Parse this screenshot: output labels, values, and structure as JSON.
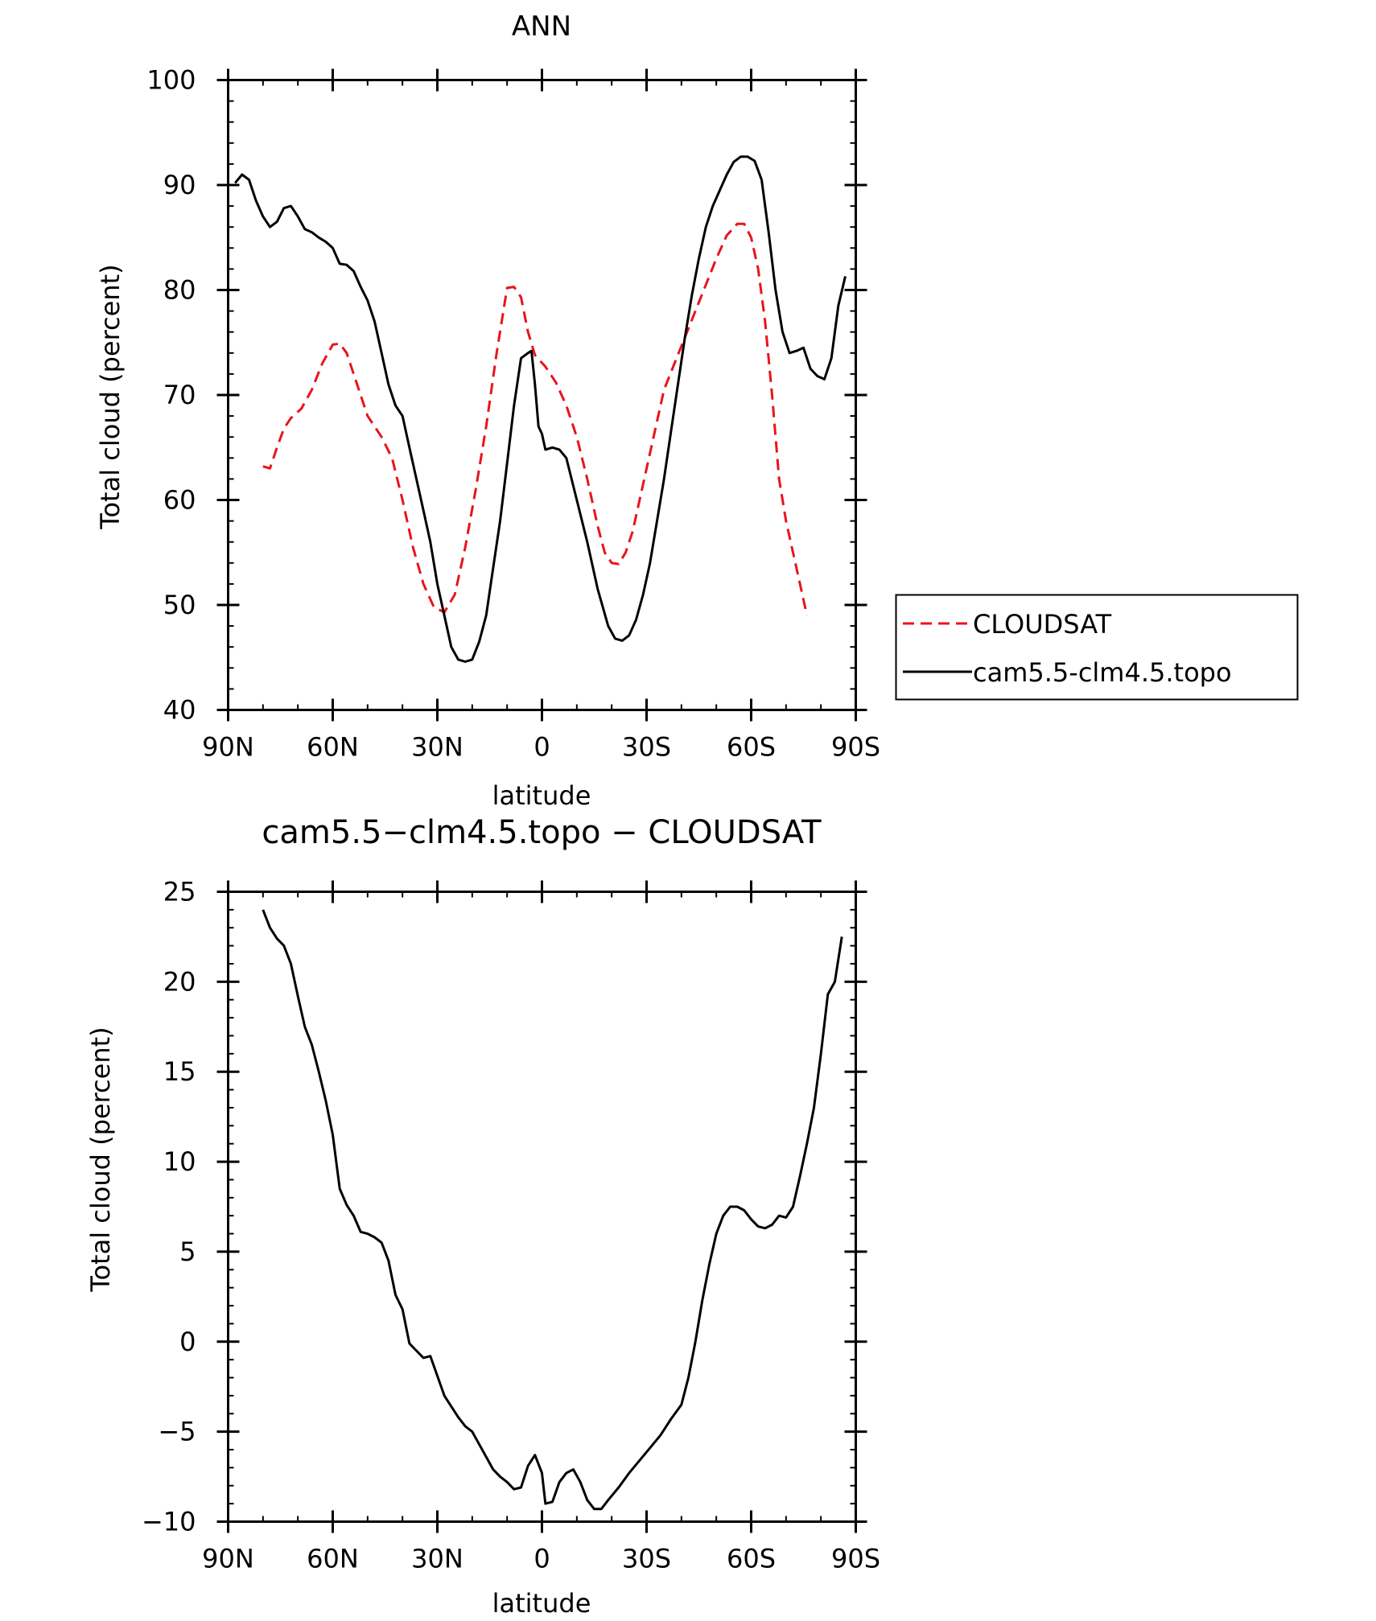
{
  "colors": {
    "model": "#000000",
    "obs": "#e8141c"
  },
  "chart_data": [
    {
      "type": "line",
      "title": "ANN",
      "xlabel": "latitude",
      "ylabel": "Total cloud (percent)",
      "xlim": [
        -90,
        90
      ],
      "ylim": [
        40,
        100
      ],
      "x_ticks": [
        {
          "value": -90,
          "label": "90N"
        },
        {
          "value": -60,
          "label": "60N"
        },
        {
          "value": -30,
          "label": "30N"
        },
        {
          "value": 0,
          "label": "0"
        },
        {
          "value": 30,
          "label": "30S"
        },
        {
          "value": 60,
          "label": "60S"
        },
        {
          "value": 90,
          "label": "90S"
        }
      ],
      "y_ticks": [
        40,
        50,
        60,
        70,
        80,
        90,
        100
      ],
      "legend": {
        "placement": "right, outside plot"
      },
      "series": [
        {
          "name": "CLOUDSAT",
          "style": "dashed",
          "color": "#e8141c",
          "points": [
            [
              -80,
              63.2
            ],
            [
              -78,
              63
            ],
            [
              -76,
              65
            ],
            [
              -74,
              66.8
            ],
            [
              -72,
              67.8
            ],
            [
              -69,
              68.7
            ],
            [
              -66,
              70.5
            ],
            [
              -63,
              73
            ],
            [
              -60,
              74.8
            ],
            [
              -58,
              74.9
            ],
            [
              -56,
              74
            ],
            [
              -53,
              71
            ],
            [
              -50,
              68
            ],
            [
              -46,
              66
            ],
            [
              -43,
              64
            ],
            [
              -40,
              60
            ],
            [
              -37,
              55.5
            ],
            [
              -34,
              52
            ],
            [
              -31,
              49.8
            ],
            [
              -28,
              49.3
            ],
            [
              -25,
              51
            ],
            [
              -22,
              55.5
            ],
            [
              -19,
              61
            ],
            [
              -16,
              67
            ],
            [
              -13,
              74
            ],
            [
              -10,
              80.2
            ],
            [
              -8,
              80.3
            ],
            [
              -6,
              79.3
            ],
            [
              -4,
              76
            ],
            [
              -2,
              73.8
            ],
            [
              1,
              72.7
            ],
            [
              4,
              71.2
            ],
            [
              7,
              69
            ],
            [
              10,
              66
            ],
            [
              13,
              62
            ],
            [
              16,
              57.5
            ],
            [
              18,
              55
            ],
            [
              20,
              54
            ],
            [
              22,
              53.9
            ],
            [
              24,
              55
            ],
            [
              26,
              57
            ],
            [
              29,
              61.5
            ],
            [
              32,
              66
            ],
            [
              35,
              70.5
            ],
            [
              38,
              73
            ],
            [
              41,
              75.5
            ],
            [
              44,
              78
            ],
            [
              47,
              80.5
            ],
            [
              50,
              83
            ],
            [
              53,
              85.2
            ],
            [
              56,
              86.3
            ],
            [
              58,
              86.3
            ],
            [
              60,
              85
            ],
            [
              62,
              82
            ],
            [
              64,
              77
            ],
            [
              66,
              70
            ],
            [
              68,
              62
            ],
            [
              70,
              58
            ],
            [
              72,
              55
            ],
            [
              74,
              52
            ],
            [
              76,
              49
            ]
          ]
        },
        {
          "name": "cam5.5-clm4.5.topo",
          "style": "solid",
          "color": "#000000",
          "points": [
            [
              -88,
              90.2
            ],
            [
              -86,
              91
            ],
            [
              -84,
              90.5
            ],
            [
              -82,
              88.5
            ],
            [
              -80,
              87
            ],
            [
              -78,
              86
            ],
            [
              -76,
              86.5
            ],
            [
              -74,
              87.8
            ],
            [
              -72,
              88
            ],
            [
              -70,
              87
            ],
            [
              -68,
              85.8
            ],
            [
              -66,
              85.5
            ],
            [
              -64,
              85
            ],
            [
              -62,
              84.6
            ],
            [
              -60,
              84
            ],
            [
              -58,
              82.5
            ],
            [
              -56,
              82.4
            ],
            [
              -54,
              81.8
            ],
            [
              -52,
              80.3
            ],
            [
              -50,
              79
            ],
            [
              -48,
              77
            ],
            [
              -46,
              74
            ],
            [
              -44,
              71
            ],
            [
              -42,
              69
            ],
            [
              -40,
              68
            ],
            [
              -38,
              65
            ],
            [
              -36,
              62
            ],
            [
              -34,
              59
            ],
            [
              -32,
              56
            ],
            [
              -30,
              52
            ],
            [
              -28,
              49
            ],
            [
              -26,
              46
            ],
            [
              -24,
              44.8
            ],
            [
              -22,
              44.6
            ],
            [
              -20,
              44.8
            ],
            [
              -18,
              46.5
            ],
            [
              -16,
              49
            ],
            [
              -14,
              53.5
            ],
            [
              -12,
              58
            ],
            [
              -10,
              63.5
            ],
            [
              -8,
              69
            ],
            [
              -6,
              73.5
            ],
            [
              -4,
              74
            ],
            [
              -3,
              74.2
            ],
            [
              -2,
              71
            ],
            [
              -1,
              67
            ],
            [
              0,
              66.3
            ],
            [
              1,
              64.8
            ],
            [
              3,
              65
            ],
            [
              5,
              64.8
            ],
            [
              7,
              64
            ],
            [
              10,
              60
            ],
            [
              13,
              56
            ],
            [
              16,
              51.5
            ],
            [
              19,
              48
            ],
            [
              21,
              46.8
            ],
            [
              23,
              46.6
            ],
            [
              25,
              47.1
            ],
            [
              27,
              48.6
            ],
            [
              29,
              51
            ],
            [
              31,
              54
            ],
            [
              33,
              58
            ],
            [
              35,
              62
            ],
            [
              37,
              66.5
            ],
            [
              39,
              71
            ],
            [
              41,
              75.5
            ],
            [
              43,
              79.5
            ],
            [
              45,
              83
            ],
            [
              47,
              86
            ],
            [
              49,
              88
            ],
            [
              51,
              89.5
            ],
            [
              53,
              91
            ],
            [
              55,
              92.2
            ],
            [
              57,
              92.7
            ],
            [
              59,
              92.7
            ],
            [
              61,
              92.3
            ],
            [
              63,
              90.5
            ],
            [
              65,
              85.5
            ],
            [
              67,
              80
            ],
            [
              69,
              76
            ],
            [
              71,
              74
            ],
            [
              73,
              74.2
            ],
            [
              75,
              74.5
            ],
            [
              77,
              72.5
            ],
            [
              79,
              71.8
            ],
            [
              81,
              71.5
            ],
            [
              83,
              73.5
            ],
            [
              85,
              78.5
            ],
            [
              87,
              81.3
            ]
          ]
        }
      ]
    },
    {
      "type": "line",
      "title": "cam5.5−clm4.5.topo − CLOUDSAT",
      "xlabel": "latitude",
      "ylabel": "Total cloud (percent)",
      "xlim": [
        -90,
        90
      ],
      "ylim": [
        -10,
        25
      ],
      "x_ticks": [
        {
          "value": -90,
          "label": "90N"
        },
        {
          "value": -60,
          "label": "60N"
        },
        {
          "value": -30,
          "label": "30N"
        },
        {
          "value": 0,
          "label": "0"
        },
        {
          "value": 30,
          "label": "30S"
        },
        {
          "value": 60,
          "label": "60S"
        },
        {
          "value": 90,
          "label": "90S"
        }
      ],
      "y_ticks": [
        {
          "value": -10,
          "label": "−10"
        },
        {
          "value": -5,
          "label": "−5"
        },
        {
          "value": 0,
          "label": "0"
        },
        {
          "value": 5,
          "label": "5"
        },
        {
          "value": 10,
          "label": "10"
        },
        {
          "value": 15,
          "label": "15"
        },
        {
          "value": 20,
          "label": "20"
        },
        {
          "value": 25,
          "label": "25"
        }
      ],
      "series": [
        {
          "style": "solid",
          "color": "#000000",
          "points": [
            [
              -80,
              24
            ],
            [
              -78,
              23
            ],
            [
              -76,
              22.4
            ],
            [
              -74,
              22
            ],
            [
              -72,
              21
            ],
            [
              -70,
              19.2
            ],
            [
              -68,
              17.5
            ],
            [
              -66,
              16.5
            ],
            [
              -64,
              15
            ],
            [
              -62,
              13.4
            ],
            [
              -60,
              11.5
            ],
            [
              -58,
              8.5
            ],
            [
              -56,
              7.6
            ],
            [
              -54,
              7
            ],
            [
              -52,
              6.1
            ],
            [
              -50,
              6
            ],
            [
              -48,
              5.8
            ],
            [
              -46,
              5.5
            ],
            [
              -44,
              4.5
            ],
            [
              -42,
              2.6
            ],
            [
              -40,
              1.8
            ],
            [
              -38,
              -0.1
            ],
            [
              -36,
              -0.5
            ],
            [
              -34,
              -0.9
            ],
            [
              -32,
              -0.8
            ],
            [
              -30,
              -1.9
            ],
            [
              -28,
              -3
            ],
            [
              -26,
              -3.6
            ],
            [
              -24,
              -4.2
            ],
            [
              -22,
              -4.7
            ],
            [
              -20,
              -5
            ],
            [
              -18,
              -5.7
            ],
            [
              -16,
              -6.4
            ],
            [
              -14,
              -7.1
            ],
            [
              -12,
              -7.5
            ],
            [
              -10,
              -7.8
            ],
            [
              -8,
              -8.2
            ],
            [
              -6,
              -8.1
            ],
            [
              -4,
              -6.9
            ],
            [
              -2,
              -6.3
            ],
            [
              0,
              -7.3
            ],
            [
              1,
              -9
            ],
            [
              3,
              -8.9
            ],
            [
              5,
              -7.8
            ],
            [
              7,
              -7.3
            ],
            [
              9,
              -7.1
            ],
            [
              11,
              -7.8
            ],
            [
              13,
              -8.8
            ],
            [
              15,
              -9.3
            ],
            [
              17,
              -9.3
            ],
            [
              19,
              -8.8
            ],
            [
              22,
              -8.1
            ],
            [
              25,
              -7.3
            ],
            [
              28,
              -6.6
            ],
            [
              31,
              -5.9
            ],
            [
              34,
              -5.2
            ],
            [
              37,
              -4.3
            ],
            [
              40,
              -3.5
            ],
            [
              42,
              -2
            ],
            [
              44,
              0
            ],
            [
              46,
              2.3
            ],
            [
              48,
              4.3
            ],
            [
              50,
              6
            ],
            [
              52,
              7
            ],
            [
              54,
              7.5
            ],
            [
              56,
              7.5
            ],
            [
              58,
              7.3
            ],
            [
              60,
              6.8
            ],
            [
              62,
              6.4
            ],
            [
              64,
              6.3
            ],
            [
              66,
              6.5
            ],
            [
              68,
              7
            ],
            [
              70,
              6.9
            ],
            [
              72,
              7.5
            ],
            [
              74,
              9.2
            ],
            [
              76,
              11
            ],
            [
              78,
              13
            ],
            [
              80,
              16
            ],
            [
              82,
              19.3
            ],
            [
              84,
              20
            ],
            [
              86,
              22.5
            ]
          ]
        }
      ]
    }
  ]
}
